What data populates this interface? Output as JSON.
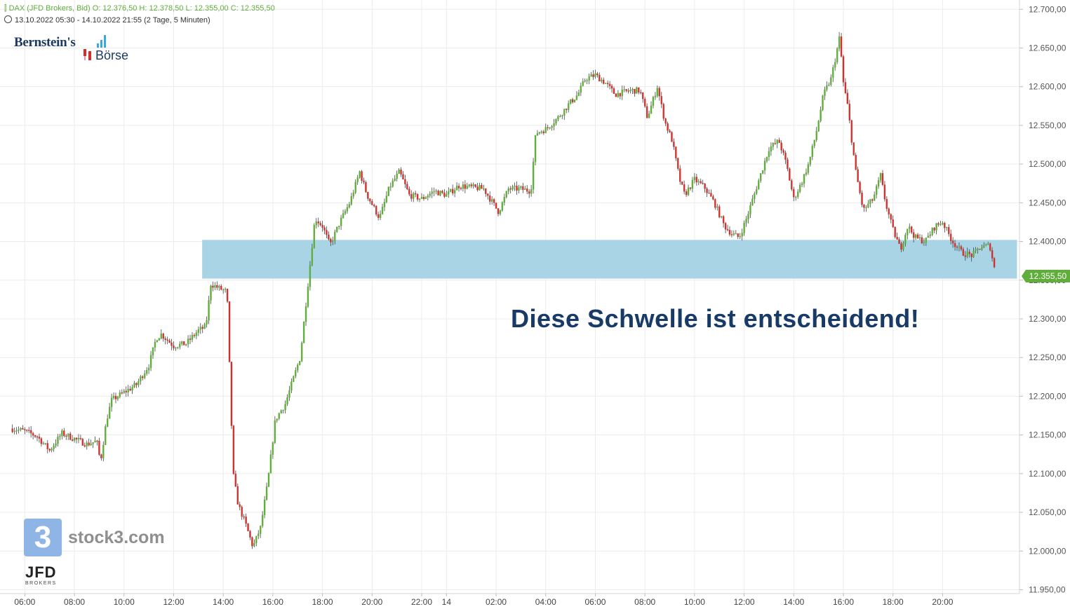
{
  "header": {
    "instrument_line": "DAX (JFD Brokers, Bid)  O: 12.376,50  H: 12.378,50  L: 12.355,00  C: 12.355,50",
    "range_line": "13.10.2022 05:30 - 14.10.2022 21:55   (2 Tage, 5 Minuten)"
  },
  "branding": {
    "logo_top": "Bernstein's",
    "logo_bottom": "Börse",
    "stock3_glyph": "3",
    "stock3_text": "stock3.com",
    "broker": "JFD",
    "broker_sub": "BROKERS"
  },
  "annotation": "Diese Schwelle ist entscheidend!",
  "last_price_label": "12.355,50",
  "colors": {
    "up": "#5fae3a",
    "down": "#d0312d",
    "zone": "#a9d4e6",
    "annotation": "#173a67"
  },
  "chart_data": {
    "type": "candlestick",
    "title": "DAX (JFD Brokers, Bid)",
    "interval": "5 Minuten",
    "y_ticks": [
      "12.700,00",
      "12.650,00",
      "12.600,00",
      "12.550,00",
      "12.500,00",
      "12.450,00",
      "12.400,00",
      "12.350,00",
      "12.300,00",
      "12.250,00",
      "12.200,00",
      "12.150,00",
      "12.100,00",
      "12.050,00",
      "12.000,00",
      "11.950,00"
    ],
    "y_tick_values": [
      12700,
      12650,
      12600,
      12550,
      12500,
      12450,
      12400,
      12350,
      12300,
      12250,
      12200,
      12150,
      12100,
      12050,
      12000,
      11950
    ],
    "ylim": [
      11945,
      12712
    ],
    "x_ticks": [
      {
        "label": "06:00",
        "t": 0.5
      },
      {
        "label": "08:00",
        "t": 2.5
      },
      {
        "label": "10:00",
        "t": 4.5
      },
      {
        "label": "12:00",
        "t": 6.5
      },
      {
        "label": "14:00",
        "t": 8.5
      },
      {
        "label": "16:00",
        "t": 10.5
      },
      {
        "label": "18:00",
        "t": 12.5
      },
      {
        "label": "20:00",
        "t": 14.5
      },
      {
        "label": "22:00",
        "t": 16.5
      },
      {
        "label": "14",
        "t": 17.5
      },
      {
        "label": "02:00",
        "t": 19.5
      },
      {
        "label": "04:00",
        "t": 21.5
      },
      {
        "label": "06:00",
        "t": 23.5
      },
      {
        "label": "08:00",
        "t": 25.5
      },
      {
        "label": "10:00",
        "t": 27.5
      },
      {
        "label": "12:00",
        "t": 29.5
      },
      {
        "label": "14:00",
        "t": 31.5
      },
      {
        "label": "16:00",
        "t": 33.5
      },
      {
        "label": "18:00",
        "t": 35.5
      },
      {
        "label": "20:00",
        "t": 37.5
      }
    ],
    "t_range": [
      0,
      39.65
    ],
    "grid": true,
    "zone": {
      "from_t": 7.65,
      "to_t": 40.5,
      "low": 12352,
      "high": 12402
    },
    "last_price": 12355.5,
    "path_keypoints": [
      [
        0.0,
        12158
      ],
      [
        0.5,
        12155
      ],
      [
        1.0,
        12148
      ],
      [
        1.5,
        12130
      ],
      [
        2.0,
        12152
      ],
      [
        2.5,
        12145
      ],
      [
        3.0,
        12138
      ],
      [
        3.4,
        12142
      ],
      [
        3.55,
        12115
      ],
      [
        3.8,
        12170
      ],
      [
        4.0,
        12195
      ],
      [
        4.5,
        12205
      ],
      [
        5.0,
        12215
      ],
      [
        5.5,
        12240
      ],
      [
        5.8,
        12275
      ],
      [
        6.0,
        12280
      ],
      [
        6.5,
        12265
      ],
      [
        7.0,
        12268
      ],
      [
        7.5,
        12285
      ],
      [
        7.8,
        12290
      ],
      [
        8.0,
        12345
      ],
      [
        8.3,
        12340
      ],
      [
        8.65,
        12335
      ],
      [
        8.9,
        12100
      ],
      [
        9.1,
        12060
      ],
      [
        9.4,
        12035
      ],
      [
        9.7,
        12005
      ],
      [
        10.0,
        12030
      ],
      [
        10.3,
        12090
      ],
      [
        10.6,
        12170
      ],
      [
        11.0,
        12190
      ],
      [
        11.3,
        12220
      ],
      [
        11.6,
        12250
      ],
      [
        11.8,
        12310
      ],
      [
        12.0,
        12370
      ],
      [
        12.2,
        12430
      ],
      [
        12.5,
        12420
      ],
      [
        12.8,
        12395
      ],
      [
        13.2,
        12425
      ],
      [
        13.6,
        12450
      ],
      [
        14.0,
        12490
      ],
      [
        14.3,
        12460
      ],
      [
        14.8,
        12430
      ],
      [
        15.2,
        12470
      ],
      [
        15.6,
        12490
      ],
      [
        16.0,
        12460
      ],
      [
        16.5,
        12455
      ],
      [
        17.0,
        12465
      ],
      [
        17.5,
        12460
      ],
      [
        18.0,
        12472
      ],
      [
        18.5,
        12470
      ],
      [
        19.0,
        12468
      ],
      [
        19.6,
        12438
      ],
      [
        20.0,
        12468
      ],
      [
        20.5,
        12468
      ],
      [
        20.9,
        12465
      ],
      [
        21.1,
        12540
      ],
      [
        21.5,
        12545
      ],
      [
        22.0,
        12560
      ],
      [
        22.5,
        12580
      ],
      [
        22.8,
        12590
      ],
      [
        23.1,
        12610
      ],
      [
        23.5,
        12615
      ],
      [
        23.9,
        12605
      ],
      [
        24.3,
        12590
      ],
      [
        24.9,
        12595
      ],
      [
        25.3,
        12595
      ],
      [
        25.6,
        12560
      ],
      [
        26.0,
        12600
      ],
      [
        26.3,
        12555
      ],
      [
        26.6,
        12530
      ],
      [
        26.9,
        12480
      ],
      [
        27.1,
        12460
      ],
      [
        27.5,
        12480
      ],
      [
        27.9,
        12470
      ],
      [
        28.3,
        12450
      ],
      [
        28.7,
        12420
      ],
      [
        29.0,
        12410
      ],
      [
        29.3,
        12405
      ],
      [
        29.6,
        12430
      ],
      [
        29.9,
        12460
      ],
      [
        30.2,
        12490
      ],
      [
        30.5,
        12520
      ],
      [
        30.9,
        12530
      ],
      [
        31.2,
        12500
      ],
      [
        31.5,
        12455
      ],
      [
        31.8,
        12475
      ],
      [
        32.1,
        12500
      ],
      [
        32.4,
        12540
      ],
      [
        32.7,
        12590
      ],
      [
        33.0,
        12610
      ],
      [
        33.2,
        12640
      ],
      [
        33.35,
        12665
      ],
      [
        33.5,
        12605
      ],
      [
        33.7,
        12570
      ],
      [
        33.8,
        12540
      ],
      [
        34.0,
        12490
      ],
      [
        34.3,
        12440
      ],
      [
        34.7,
        12455
      ],
      [
        35.0,
        12485
      ],
      [
        35.2,
        12450
      ],
      [
        35.5,
        12415
      ],
      [
        35.8,
        12390
      ],
      [
        36.1,
        12420
      ],
      [
        36.4,
        12405
      ],
      [
        36.8,
        12400
      ],
      [
        37.2,
        12420
      ],
      [
        37.5,
        12425
      ],
      [
        37.9,
        12400
      ],
      [
        38.3,
        12385
      ],
      [
        38.7,
        12382
      ],
      [
        39.0,
        12392
      ],
      [
        39.4,
        12395
      ],
      [
        39.65,
        12355.5
      ]
    ]
  }
}
